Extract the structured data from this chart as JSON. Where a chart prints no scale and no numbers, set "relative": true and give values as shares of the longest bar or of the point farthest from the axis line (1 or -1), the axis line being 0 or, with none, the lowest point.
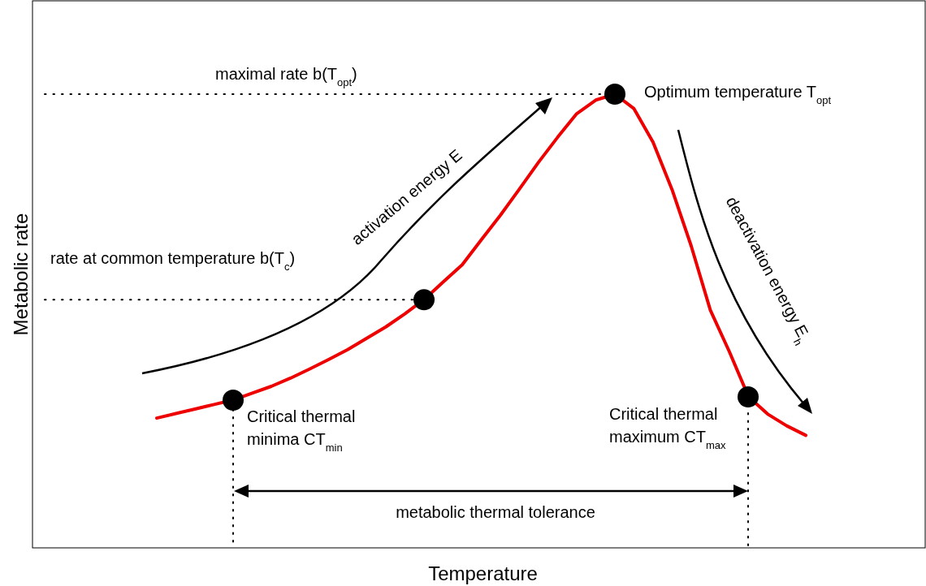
{
  "chart_data": {
    "type": "line",
    "relative": true,
    "tick_labels": false,
    "xlabel": "Temperature",
    "categories": [
      null,
      null,
      null,
      null,
      null,
      null,
      null,
      null,
      null,
      null,
      null,
      null,
      null,
      null,
      null,
      null,
      null,
      null,
      null,
      null,
      null,
      null,
      null,
      null,
      null,
      null,
      null,
      null,
      null,
      null,
      null,
      null,
      null,
      null,
      null
    ],
    "series": [
      {
        "color": "#ee0000",
        "values": [
          0.286,
          0.296,
          0.306,
          0.316,
          0.326,
          0.341,
          0.356,
          0.374,
          0.394,
          0.415,
          0.437,
          0.462,
          0.487,
          0.516,
          0.547,
          0.586,
          0.624,
          0.679,
          0.733,
          0.791,
          0.85,
          0.905,
          0.957,
          0.987,
          1,
          0.968,
          0.894,
          0.789,
          0.665,
          0.524,
          0.432,
          0.333,
          0.295,
          0.269,
          0.248
        ]
      }
    ],
    "ref_lines": [
      {
        "axis": "y",
        "value": 1,
        "label": "maximal rate b(T$_{opt}$)",
        "line_style": "dotted"
      },
      {
        "axis": "y",
        "value": 0.547,
        "label": "rate at common temperature b(T$_{c}$)",
        "line_style": "dotted"
      }
    ],
    "annotations": [
      "Optimum temperature T$_{opt}$",
      "Critical thermal minima CT$_{min}$",
      "Critical thermal maximum CT$_{max}$",
      "activation energy E",
      "deactivation energy E$_{h}$",
      "metabolic thermal tolerance",
      "Metabolic rate"
    ]
  }
}
